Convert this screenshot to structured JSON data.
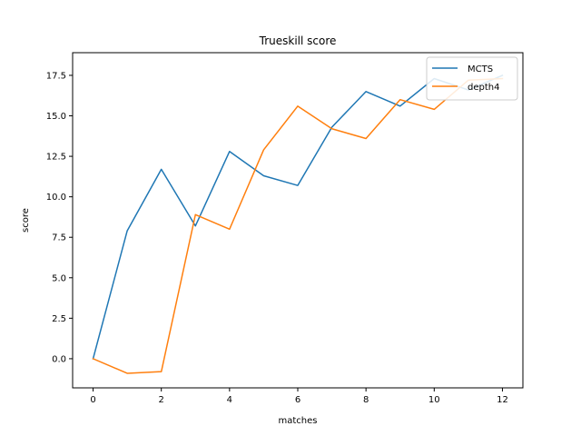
{
  "chart_data": {
    "type": "line",
    "title": "Trueskill score",
    "xlabel": "matches",
    "ylabel": "score",
    "xlim": [
      -0.6,
      12.6
    ],
    "ylim": [
      -1.8,
      18.9
    ],
    "xticks": [
      0,
      2,
      4,
      6,
      8,
      10,
      12
    ],
    "xtick_labels": [
      "0",
      "2",
      "4",
      "6",
      "8",
      "10",
      "12"
    ],
    "yticks": [
      0.0,
      2.5,
      5.0,
      7.5,
      10.0,
      12.5,
      15.0,
      17.5
    ],
    "ytick_labels": [
      "0.0",
      "2.5",
      "5.0",
      "7.5",
      "10.0",
      "12.5",
      "15.0",
      "17.5"
    ],
    "grid": false,
    "legend_position": "top-right",
    "series": [
      {
        "name": "MCTS",
        "color": "#1f77b4",
        "x": [
          0,
          1,
          2,
          3,
          4,
          5,
          6,
          7,
          8,
          9,
          10,
          11,
          12
        ],
        "y": [
          0.0,
          7.9,
          11.7,
          8.2,
          12.8,
          11.3,
          10.7,
          14.3,
          16.5,
          15.6,
          17.3,
          16.6,
          17.5
        ]
      },
      {
        "name": "depth4",
        "color": "#ff7f0e",
        "x": [
          0,
          1,
          2,
          3,
          4,
          5,
          6,
          7,
          8,
          9,
          10,
          11,
          12
        ],
        "y": [
          0.0,
          -0.9,
          -0.8,
          8.9,
          8.0,
          12.9,
          15.6,
          14.2,
          13.6,
          16.0,
          15.4,
          17.2,
          17.3
        ]
      }
    ]
  }
}
